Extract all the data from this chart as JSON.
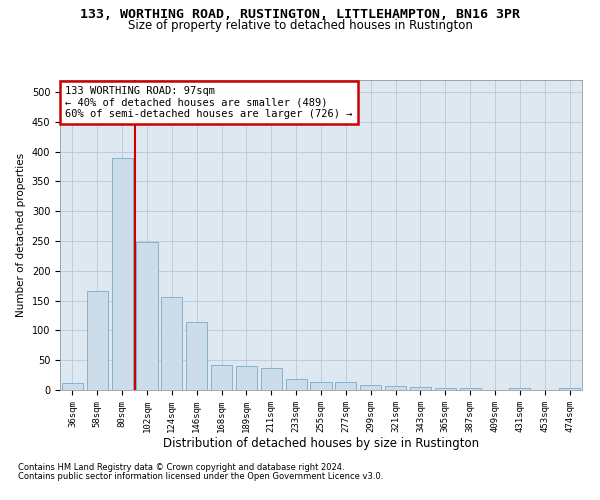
{
  "title": "133, WORTHING ROAD, RUSTINGTON, LITTLEHAMPTON, BN16 3PR",
  "subtitle": "Size of property relative to detached houses in Rustington",
  "xlabel": "Distribution of detached houses by size in Rustington",
  "ylabel": "Number of detached properties",
  "categories": [
    "36sqm",
    "58sqm",
    "80sqm",
    "102sqm",
    "124sqm",
    "146sqm",
    "168sqm",
    "189sqm",
    "211sqm",
    "233sqm",
    "255sqm",
    "277sqm",
    "299sqm",
    "321sqm",
    "343sqm",
    "365sqm",
    "387sqm",
    "409sqm",
    "431sqm",
    "453sqm",
    "474sqm"
  ],
  "values": [
    11,
    166,
    390,
    248,
    156,
    114,
    42,
    40,
    37,
    18,
    14,
    13,
    8,
    7,
    5,
    4,
    3,
    0,
    3,
    0,
    3
  ],
  "bar_color": "#ccdce8",
  "bar_edge_color": "#7aaac8",
  "vline_color": "#cc0000",
  "annotation_text": "133 WORTHING ROAD: 97sqm\n← 40% of detached houses are smaller (489)\n60% of semi-detached houses are larger (726) →",
  "annotation_box_color": "#ffffff",
  "annotation_box_edge": "#cc0000",
  "footer1": "Contains HM Land Registry data © Crown copyright and database right 2024.",
  "footer2": "Contains public sector information licensed under the Open Government Licence v3.0.",
  "ylim": [
    0,
    520
  ],
  "yticks": [
    0,
    50,
    100,
    150,
    200,
    250,
    300,
    350,
    400,
    450,
    500
  ],
  "background_color": "#ffffff",
  "axes_bg_color": "#dde8f0",
  "grid_color": "#b8c8d8"
}
